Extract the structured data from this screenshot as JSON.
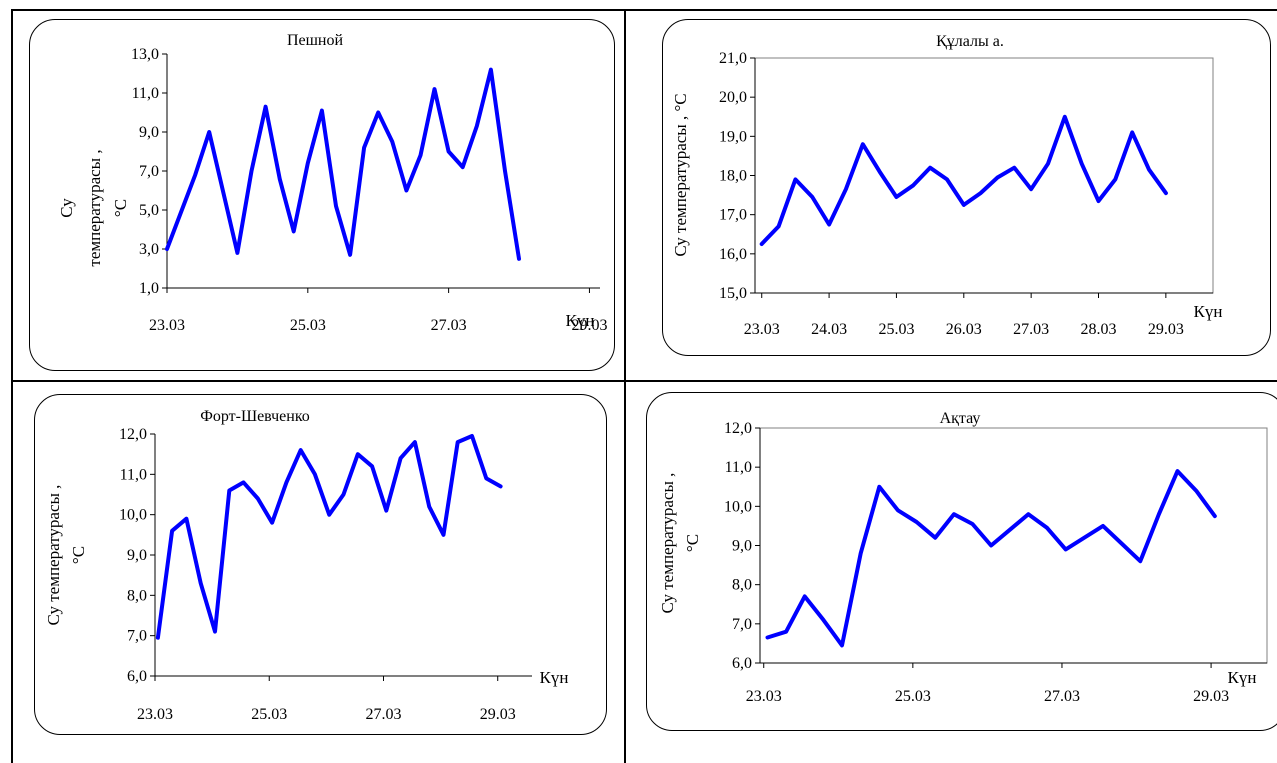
{
  "line_color": "#0000ff",
  "chart_data": [
    {
      "type": "line",
      "title": "Пешной",
      "ylabel": "Су температурасы , °С",
      "ylabel_lines": [
        "Су",
        "температурасы ,",
        "°С"
      ],
      "xlabel": "Күн",
      "ylim": [
        1,
        13
      ],
      "yticks": [
        1,
        3,
        5,
        7,
        9,
        11,
        13
      ],
      "ytick_labels": [
        "1,0",
        "3,0",
        "5,0",
        "7,0",
        "9,0",
        "11,0",
        "13,0"
      ],
      "xlim": [
        23,
        29.15
      ],
      "xticks": [
        23,
        25,
        27,
        29
      ],
      "xtick_labels": [
        "23.03",
        "25.03",
        "27.03",
        "29.03"
      ],
      "plot_border": false,
      "series": [
        {
          "x": [
            23.0,
            23.4,
            23.6,
            23.8,
            24.0,
            24.2,
            24.4,
            24.6,
            24.8,
            25.0,
            25.2,
            25.4,
            25.6,
            25.8,
            26.0,
            26.2,
            26.4,
            26.6,
            26.8,
            27.0,
            27.2,
            27.4,
            27.6,
            27.8,
            28.0,
            28.2,
            28.4,
            28.6,
            28.8,
            29.0
          ],
          "y": [
            3.0,
            6.8,
            9.0,
            5.9,
            2.8,
            7.0,
            10.3,
            6.6,
            3.9,
            7.4,
            10.1,
            5.2,
            2.7,
            8.2,
            10.0,
            8.5,
            6.0,
            7.8,
            11.2,
            8.0,
            7.2,
            9.3,
            12.2,
            7.0,
            2.5,
            null,
            null,
            null,
            null,
            null
          ]
        }
      ]
    },
    {
      "type": "line",
      "title": "Құлалы а.",
      "ylabel": "Су температурасы , °С",
      "ylabel_lines": [
        "Су температурасы , °С"
      ],
      "xlabel": "Күн",
      "ylim": [
        15,
        21
      ],
      "yticks": [
        15,
        16,
        17,
        18,
        19,
        20,
        21
      ],
      "ytick_labels": [
        "15,0",
        "16,0",
        "17,0",
        "18,0",
        "19,0",
        "20,0",
        "21,0"
      ],
      "xlim": [
        22.9,
        29.7
      ],
      "xticks": [
        23,
        24,
        25,
        26,
        27,
        28,
        29
      ],
      "xtick_labels": [
        "23.03",
        "24.03",
        "25.03",
        "26.03",
        "27.03",
        "28.03",
        "29.03"
      ],
      "plot_border": true,
      "series": [
        {
          "x": [
            23.0,
            23.25,
            23.5,
            23.75,
            24.0,
            24.25,
            24.5,
            24.75,
            25.0,
            25.25,
            25.5,
            25.75,
            26.0,
            26.25,
            26.5,
            26.75,
            27.0,
            27.25,
            27.5,
            27.75,
            28.0,
            28.25,
            28.5,
            28.75,
            29.0
          ],
          "y": [
            16.25,
            16.7,
            17.9,
            17.45,
            16.75,
            17.65,
            18.8,
            18.1,
            17.45,
            17.75,
            18.2,
            17.9,
            17.25,
            17.55,
            17.95,
            18.2,
            17.65,
            18.3,
            19.5,
            18.3,
            17.35,
            17.9,
            19.1,
            18.15,
            17.55
          ]
        }
      ]
    },
    {
      "type": "line",
      "title": "Форт-Шевченко",
      "ylabel": "Су температурасы , °С",
      "ylabel_lines": [
        "Су температурасы ,",
        "°С"
      ],
      "xlabel": "Күн",
      "ylim": [
        6,
        12
      ],
      "yticks": [
        6,
        7,
        8,
        9,
        10,
        11,
        12
      ],
      "ytick_labels": [
        "6,0",
        "7,0",
        "8,0",
        "9,0",
        "10,0",
        "11,0",
        "12,0"
      ],
      "xlim": [
        23,
        29.6
      ],
      "xticks": [
        23,
        25,
        27,
        29
      ],
      "xtick_labels": [
        "23.03",
        "25.03",
        "27.03",
        "29.03"
      ],
      "plot_border": false,
      "series": [
        {
          "x": [
            23.05,
            23.3,
            23.55,
            23.8,
            24.05,
            24.3,
            24.55,
            24.8,
            25.05,
            25.3,
            25.55,
            25.8,
            26.05,
            26.3,
            26.55,
            26.8,
            27.05,
            27.3,
            27.55,
            27.8,
            28.05,
            28.3,
            28.55,
            28.8,
            29.05
          ],
          "y": [
            6.95,
            9.6,
            9.9,
            8.3,
            7.1,
            10.6,
            10.8,
            10.4,
            9.8,
            10.8,
            11.6,
            11.0,
            10.0,
            10.5,
            11.5,
            11.2,
            10.1,
            11.4,
            11.8,
            10.2,
            9.5,
            11.8,
            11.95,
            10.9,
            10.7
          ]
        }
      ]
    },
    {
      "type": "line",
      "title": "Ақтау",
      "ylabel": "Су температурасы , °С",
      "ylabel_lines": [
        "Су температурасы ,",
        "°С"
      ],
      "xlabel": "Күн",
      "ylim": [
        6,
        12
      ],
      "yticks": [
        6,
        7,
        8,
        9,
        10,
        11,
        12
      ],
      "ytick_labels": [
        "6,0",
        "7,0",
        "8,0",
        "9,0",
        "10,0",
        "11,0",
        "12,0"
      ],
      "xlim": [
        22.95,
        29.75
      ],
      "xticks": [
        23,
        25,
        27,
        29
      ],
      "xtick_labels": [
        "23.03",
        "25.03",
        "27.03",
        "29.03"
      ],
      "plot_border": true,
      "series": [
        {
          "x": [
            23.05,
            23.3,
            23.55,
            23.8,
            24.05,
            24.3,
            24.55,
            24.8,
            25.05,
            25.3,
            25.55,
            25.8,
            26.05,
            26.3,
            26.55,
            26.8,
            27.05,
            27.3,
            27.55,
            27.8,
            28.05,
            28.3,
            28.55,
            28.8,
            29.05
          ],
          "y": [
            6.65,
            6.8,
            7.7,
            7.1,
            6.45,
            8.8,
            10.5,
            9.9,
            9.6,
            9.2,
            9.8,
            9.55,
            9.0,
            9.4,
            9.8,
            9.45,
            8.9,
            9.2,
            9.5,
            9.05,
            8.6,
            9.8,
            10.9,
            10.4,
            9.75
          ]
        }
      ]
    }
  ]
}
